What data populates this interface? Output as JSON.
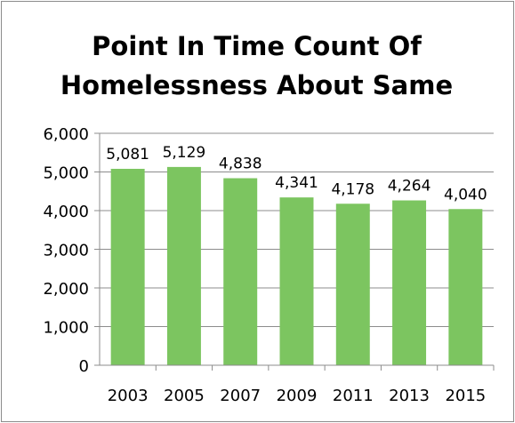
{
  "chart_data": {
    "type": "bar",
    "title_lines": [
      "Point In Time Count Of",
      "Homelessness About Same"
    ],
    "categories": [
      "2003",
      "2005",
      "2007",
      "2009",
      "2011",
      "2013",
      "2015"
    ],
    "values": [
      5081,
      5129,
      4838,
      4341,
      4178,
      4264,
      4040
    ],
    "data_labels": [
      "5,081",
      "5,129",
      "4,838",
      "4,341",
      "4,178",
      "4,264",
      "4,040"
    ],
    "y_ticks": [
      "0",
      "1,000",
      "2,000",
      "3,000",
      "4,000",
      "5,000",
      "6,000"
    ],
    "ylim": [
      0,
      6000
    ],
    "ytick_step": 1000,
    "grid": true,
    "legend": "none",
    "bar_color": "#7cc560",
    "grid_color": "#8c8c8c",
    "axis_color": "#8c8c8c"
  }
}
